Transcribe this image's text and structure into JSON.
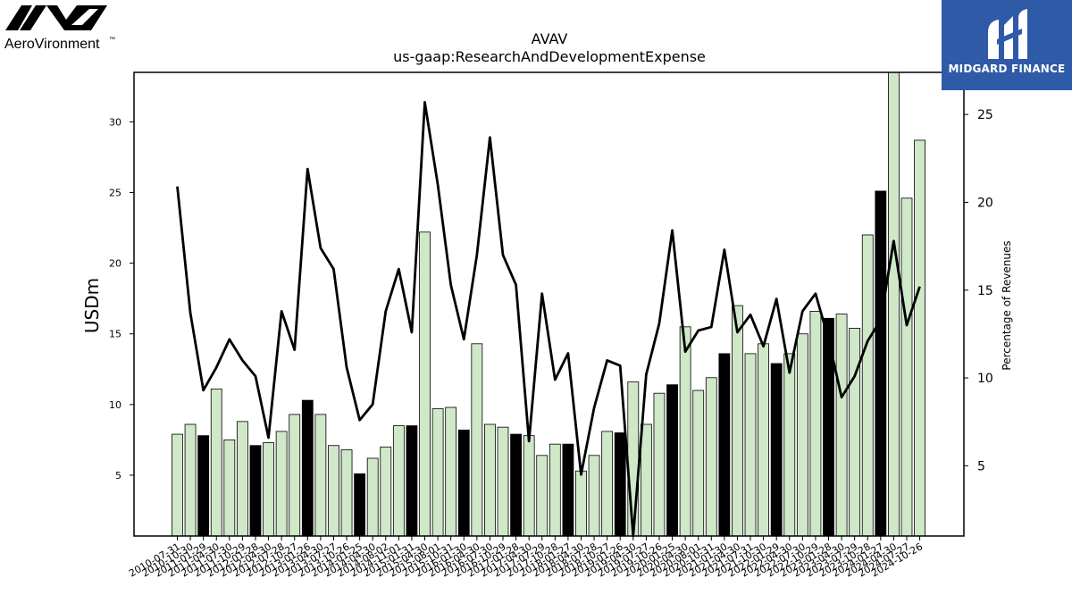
{
  "logo": {
    "text": "AeroVironment",
    "tm": "™"
  },
  "brand": {
    "name": "MIDGARD FINANCE"
  },
  "chart_data": {
    "type": "bar",
    "title": "AVAV",
    "subtitle": "us-gaap:ResearchAndDevelopmentExpense",
    "ylabel": "USDm",
    "y2label": "Percentage of Revenues",
    "ylim": [
      0.7,
      33.5
    ],
    "y2lim": [
      1.0,
      27.4
    ],
    "yticks": [
      5,
      10,
      15,
      20,
      25,
      30
    ],
    "y2ticks": [
      5,
      10,
      15,
      20,
      25
    ],
    "grid": false,
    "colors": {
      "bar": "#cfe8c8",
      "bar_highlight": "#000000",
      "bar_edge": "#000000",
      "line": "#000000"
    },
    "categories": [
      "2010-07-31",
      "2010-10-30",
      "2011-01-29",
      "2011-04-30",
      "2011-07-30",
      "2011-10-29",
      "2012-01-28",
      "2012-04-30",
      "2012-07-28",
      "2012-10-27",
      "2013-01-26",
      "2013-04-30",
      "2013-07-27",
      "2013-10-26",
      "2014-01-25",
      "2014-04-30",
      "2014-08-02",
      "2014-11-01",
      "2015-01-31",
      "2015-04-30",
      "2015-08-01",
      "2015-10-31",
      "2016-01-30",
      "2016-04-30",
      "2016-07-30",
      "2016-10-29",
      "2017-01-28",
      "2017-04-30",
      "2017-07-29",
      "2017-10-28",
      "2018-01-27",
      "2018-04-30",
      "2018-07-28",
      "2018-10-27",
      "2019-01-26",
      "2019-04-30",
      "2019-07-27",
      "2019-10-26",
      "2020-01-25",
      "2020-04-30",
      "2020-08-01",
      "2020-10-31",
      "2021-01-30",
      "2021-04-30",
      "2021-07-31",
      "2021-10-30",
      "2022-01-29",
      "2022-04-30",
      "2022-07-30",
      "2022-10-29",
      "2023-01-28",
      "2023-04-30",
      "2023-07-29",
      "2023-10-28",
      "2024-01-27",
      "2024-04-30",
      "2024-07-27",
      "2024-10-26"
    ],
    "values": [
      7.9,
      8.6,
      7.8,
      11.1,
      7.5,
      8.8,
      7.1,
      7.3,
      8.1,
      9.3,
      10.3,
      9.3,
      7.1,
      6.8,
      5.1,
      6.2,
      7.0,
      8.5,
      8.5,
      22.2,
      9.7,
      9.8,
      8.2,
      14.3,
      8.6,
      8.4,
      7.9,
      7.8,
      6.4,
      7.2,
      7.2,
      5.3,
      6.4,
      8.1,
      8.0,
      11.6,
      8.6,
      10.8,
      11.4,
      15.5,
      11.0,
      11.9,
      13.6,
      17.0,
      13.6,
      14.3,
      12.9,
      13.6,
      15.0,
      16.6,
      16.1,
      16.4,
      15.4,
      22.0,
      25.1,
      33.5,
      24.6,
      28.7
    ],
    "highlight": [
      0,
      0,
      1,
      0,
      0,
      0,
      1,
      0,
      0,
      0,
      1,
      0,
      0,
      0,
      1,
      0,
      0,
      0,
      1,
      0,
      0,
      0,
      1,
      0,
      0,
      0,
      1,
      0,
      0,
      0,
      1,
      0,
      0,
      0,
      1,
      0,
      0,
      0,
      1,
      0,
      0,
      0,
      1,
      0,
      0,
      0,
      1,
      0,
      0,
      0,
      1,
      0,
      0,
      0,
      1,
      0,
      0,
      0
    ],
    "series": [
      {
        "name": "Percentage of Revenues",
        "axis": "right",
        "values": [
          20.9,
          13.7,
          9.3,
          10.6,
          12.2,
          11.0,
          10.1,
          6.6,
          13.8,
          11.6,
          21.9,
          17.4,
          16.2,
          10.6,
          7.6,
          8.5,
          13.8,
          16.2,
          12.6,
          25.7,
          21.0,
          15.3,
          12.2,
          17.0,
          23.7,
          17.0,
          15.3,
          6.4,
          14.8,
          9.9,
          11.4,
          4.5,
          8.3,
          11.0,
          10.7,
          1.0,
          10.2,
          13.1,
          18.4,
          11.5,
          12.7,
          12.9,
          17.3,
          12.6,
          13.6,
          11.8,
          14.5,
          10.3,
          13.8,
          14.8,
          12.2,
          8.9,
          10.1,
          12.1,
          13.3,
          17.8,
          13.0,
          15.2
        ]
      }
    ]
  }
}
